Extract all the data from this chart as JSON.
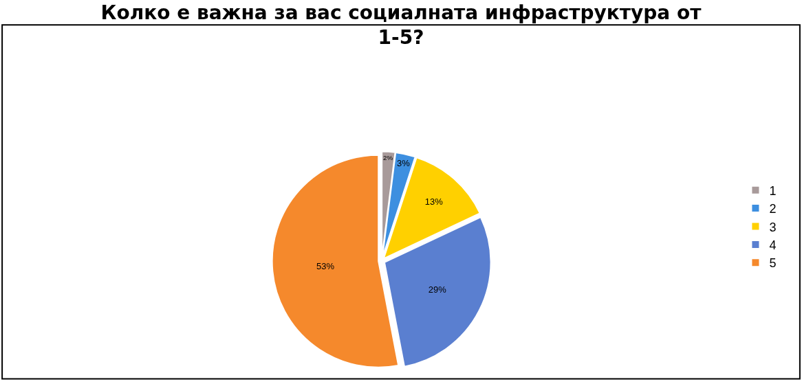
{
  "chart_data": {
    "type": "pie",
    "title": "Колко е важна за вас социалната инфраструктура от\n1-5?",
    "categories": [
      "1",
      "2",
      "3",
      "4",
      "5"
    ],
    "values": [
      2,
      3,
      13,
      29,
      53
    ],
    "value_labels": [
      "2%",
      "3%",
      "13%",
      "29%",
      "53%"
    ],
    "colors": [
      "#a89a9a",
      "#3d8fe0",
      "#ffd000",
      "#5a7fd0",
      "#f5892c"
    ],
    "legend": "right"
  }
}
